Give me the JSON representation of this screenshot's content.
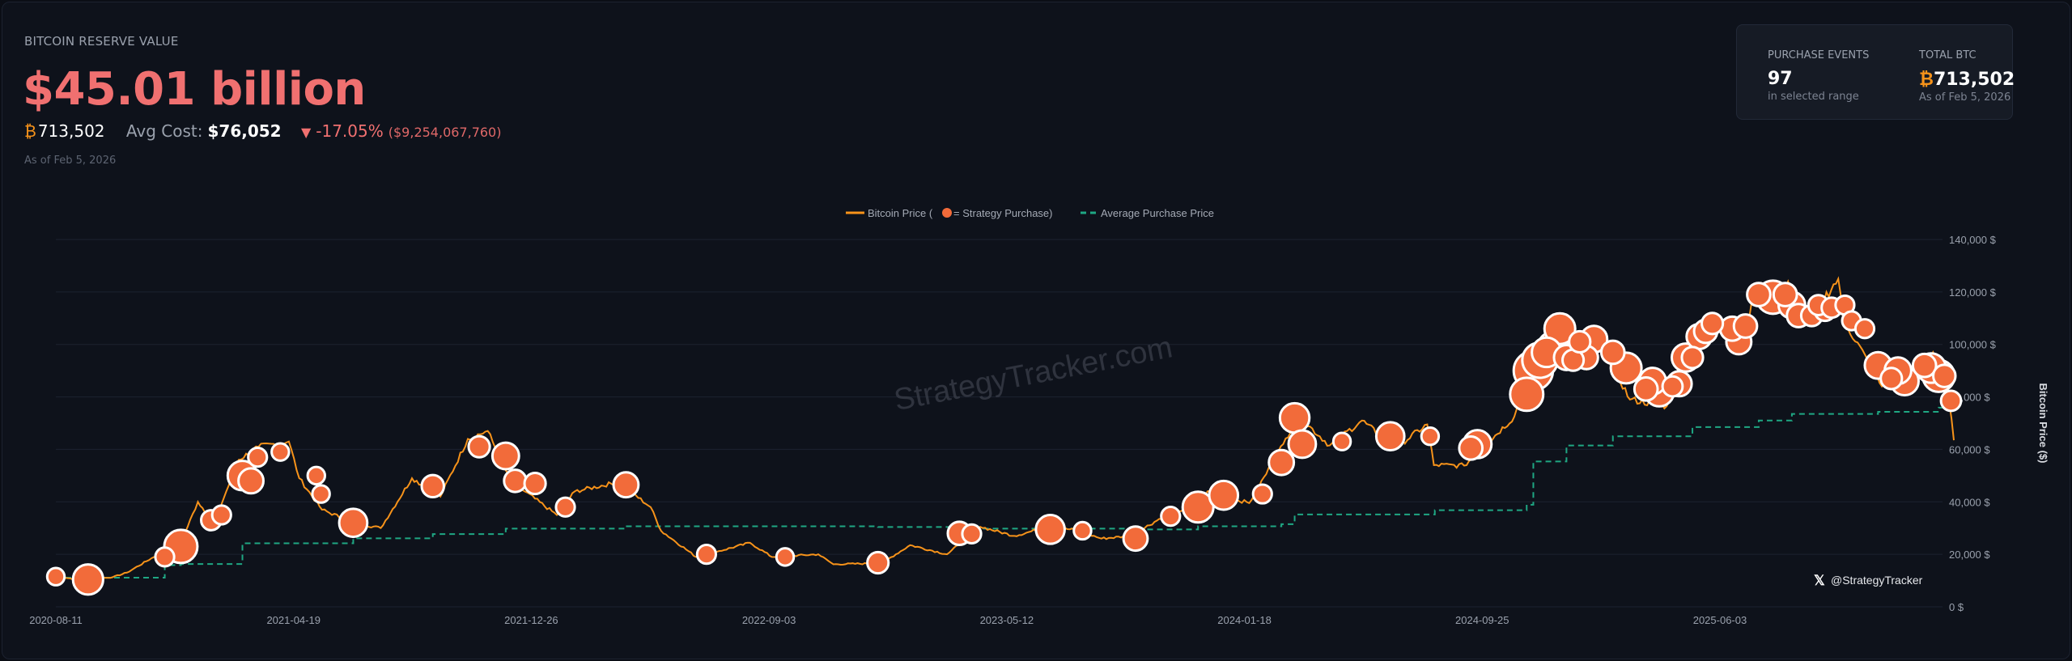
{
  "header": {
    "label": "BITCOIN RESERVE VALUE",
    "value": "$45.01 billion",
    "btc_symbol": "₿",
    "btc_amount": "713,502",
    "avg_cost_label": "Avg Cost:",
    "avg_cost": "$76,052",
    "change_arrow": "▼",
    "change_pct": "-17.05%",
    "change_abs": "($9,254,067,760)",
    "as_of": "As of Feb 5, 2026"
  },
  "stats": {
    "purchase_events_label": "PURCHASE EVENTS",
    "purchase_events": "97",
    "purchase_events_sub": "in selected range",
    "total_btc_label": "TOTAL BTC",
    "total_btc_symbol": "₿",
    "total_btc": "713,502",
    "total_btc_sub": "As of Feb 5, 2026"
  },
  "colors": {
    "price": "#f7931a",
    "purchase": "#f26b3a",
    "average": "#1fa783",
    "negative": "#f07070",
    "background": "#0e121b"
  },
  "watermark": "StrategyTracker.com",
  "credit": {
    "icon": "x-logo-icon",
    "handle": "@StrategyTracker"
  },
  "chart_data": {
    "type": "line",
    "legend": {
      "placement": "top-center",
      "price_label_pre": "Bitcoin Price (",
      "price_label_post": " = Strategy Purchase)",
      "avg_label": "Average Purchase Price"
    },
    "ylabel": "Bitcoin Price ($)",
    "ylim": [
      0,
      140000
    ],
    "yticks": [
      "0 $",
      "20,000 $",
      "40,000 $",
      "60,000 $",
      "80,000 $",
      "100,000 $",
      "120,000 $",
      "140,000 $"
    ],
    "xlim": [
      "2020-08-11",
      "2026-02-05"
    ],
    "xticks": [
      "2020-08-11",
      "2021-04-19",
      "2021-12-26",
      "2022-09-03",
      "2023-05-12",
      "2024-01-18",
      "2024-09-25",
      "2025-06-03"
    ],
    "grid": true,
    "price": [
      [
        "2020-08-11",
        11600
      ],
      [
        "2020-09-05",
        10300
      ],
      [
        "2020-10-10",
        11300
      ],
      [
        "2020-10-25",
        13000
      ],
      [
        "2020-11-20",
        18500
      ],
      [
        "2020-12-20",
        23500
      ],
      [
        "2021-01-08",
        40000
      ],
      [
        "2021-01-25",
        32000
      ],
      [
        "2021-02-20",
        56000
      ],
      [
        "2021-03-13",
        61000
      ],
      [
        "2021-04-14",
        63000
      ],
      [
        "2021-04-25",
        49000
      ],
      [
        "2021-05-19",
        37000
      ],
      [
        "2021-06-22",
        32000
      ],
      [
        "2021-07-20",
        30000
      ],
      [
        "2021-08-22",
        49000
      ],
      [
        "2021-09-21",
        42000
      ],
      [
        "2021-10-20",
        64000
      ],
      [
        "2021-11-10",
        67000
      ],
      [
        "2021-12-04",
        48000
      ],
      [
        "2022-01-22",
        35000
      ],
      [
        "2022-02-10",
        44000
      ],
      [
        "2022-03-28",
        47500
      ],
      [
        "2022-05-01",
        38000
      ],
      [
        "2022-05-12",
        29000
      ],
      [
        "2022-06-18",
        19000
      ],
      [
        "2022-07-10",
        21000
      ],
      [
        "2022-08-14",
        24400
      ],
      [
        "2022-09-06",
        19000
      ],
      [
        "2022-10-25",
        20000
      ],
      [
        "2022-11-10",
        16200
      ],
      [
        "2022-12-31",
        16600
      ],
      [
        "2023-01-30",
        23500
      ],
      [
        "2023-03-10",
        20000
      ],
      [
        "2023-04-14",
        30500
      ],
      [
        "2023-05-20",
        27000
      ],
      [
        "2023-06-25",
        30500
      ],
      [
        "2023-07-25",
        29200
      ],
      [
        "2023-08-20",
        26000
      ],
      [
        "2023-09-20",
        27000
      ],
      [
        "2023-10-25",
        34500
      ],
      [
        "2023-11-30",
        37700
      ],
      [
        "2023-12-10",
        44000
      ],
      [
        "2024-01-23",
        39500
      ],
      [
        "2024-02-28",
        62000
      ],
      [
        "2024-03-14",
        73000
      ],
      [
        "2024-04-17",
        61500
      ],
      [
        "2024-05-21",
        71000
      ],
      [
        "2024-06-25",
        60500
      ],
      [
        "2024-07-29",
        69500
      ],
      [
        "2024-08-05",
        54000
      ],
      [
        "2024-09-06",
        53800
      ],
      [
        "2024-10-29",
        72500
      ],
      [
        "2024-11-22",
        99000
      ],
      [
        "2024-12-17",
        106500
      ],
      [
        "2025-01-13",
        91000
      ],
      [
        "2025-01-21",
        106000
      ],
      [
        "2025-02-28",
        79000
      ],
      [
        "2025-04-08",
        76500
      ],
      [
        "2025-05-22",
        111000
      ],
      [
        "2025-06-22",
        99000
      ],
      [
        "2025-07-14",
        122500
      ],
      [
        "2025-08-02",
        113000
      ],
      [
        "2025-08-14",
        124000
      ],
      [
        "2025-09-01",
        108000
      ],
      [
        "2025-10-06",
        125000
      ],
      [
        "2025-10-11",
        110000
      ],
      [
        "2025-11-21",
        84000
      ],
      [
        "2025-12-10",
        93000
      ],
      [
        "2025-12-31",
        87500
      ],
      [
        "2026-01-14",
        97000
      ],
      [
        "2026-01-25",
        88000
      ],
      [
        "2026-01-31",
        78000
      ],
      [
        "2026-02-05",
        63500
      ]
    ],
    "average_price": [
      [
        "2020-08-11",
        11100
      ],
      [
        "2020-12-04",
        15900
      ],
      [
        "2020-12-21",
        16300
      ],
      [
        "2021-02-24",
        24200
      ],
      [
        "2021-06-21",
        26100
      ],
      [
        "2021-09-13",
        27700
      ],
      [
        "2021-11-29",
        29800
      ],
      [
        "2022-04-05",
        30700
      ],
      [
        "2022-12-27",
        30400
      ],
      [
        "2023-04-05",
        29800
      ],
      [
        "2023-09-25",
        29500
      ],
      [
        "2023-11-30",
        30700
      ],
      [
        "2024-02-26",
        31500
      ],
      [
        "2024-03-11",
        35200
      ],
      [
        "2024-08-06",
        36800
      ],
      [
        "2024-11-11",
        38900
      ],
      [
        "2024-11-18",
        55400
      ],
      [
        "2024-12-23",
        61500
      ],
      [
        "2025-02-10",
        65000
      ],
      [
        "2025-05-05",
        68500
      ],
      [
        "2025-07-14",
        71000
      ],
      [
        "2025-08-18",
        73500
      ],
      [
        "2025-11-17",
        74300
      ],
      [
        "2026-01-20",
        75900
      ],
      [
        "2026-02-05",
        76052
      ]
    ],
    "purchases": [
      [
        "2020-08-11",
        11500,
        3
      ],
      [
        "2020-09-14",
        10400,
        17
      ],
      [
        "2020-12-04",
        19000,
        4
      ],
      [
        "2020-12-21",
        23000,
        22
      ],
      [
        "2021-01-22",
        33000,
        5
      ],
      [
        "2021-02-02",
        35000,
        4
      ],
      [
        "2021-02-24",
        50000,
        16
      ],
      [
        "2021-03-05",
        48000,
        10
      ],
      [
        "2021-03-12",
        57000,
        4
      ],
      [
        "2021-04-05",
        59000,
        3
      ],
      [
        "2021-05-13",
        50000,
        3
      ],
      [
        "2021-05-18",
        43000,
        3
      ],
      [
        "2021-06-21",
        32000,
        14
      ],
      [
        "2021-09-13",
        46000,
        7
      ],
      [
        "2021-11-01",
        61000,
        6
      ],
      [
        "2021-11-29",
        57500,
        12
      ],
      [
        "2021-12-09",
        48000,
        7
      ],
      [
        "2021-12-30",
        47000,
        6
      ],
      [
        "2022-01-31",
        38000,
        4
      ],
      [
        "2022-04-05",
        46500,
        10
      ],
      [
        "2022-06-29",
        20000,
        4
      ],
      [
        "2022-09-20",
        19000,
        3
      ],
      [
        "2022-12-27",
        16800,
        6
      ],
      [
        "2023-03-23",
        28000,
        8
      ],
      [
        "2023-04-05",
        27800,
        4
      ],
      [
        "2023-06-27",
        29500,
        15
      ],
      [
        "2023-07-31",
        29000,
        3
      ],
      [
        "2023-09-25",
        26000,
        9
      ],
      [
        "2023-11-01",
        34500,
        4
      ],
      [
        "2023-11-30",
        38000,
        18
      ],
      [
        "2023-12-27",
        42500,
        15
      ],
      [
        "2024-02-06",
        43000,
        4
      ],
      [
        "2024-02-26",
        55000,
        10
      ],
      [
        "2024-03-11",
        72000,
        16
      ],
      [
        "2024-03-19",
        62000,
        13
      ],
      [
        "2024-04-30",
        63000,
        3
      ],
      [
        "2024-06-20",
        65000,
        14
      ],
      [
        "2024-08-01",
        65000,
        3
      ],
      [
        "2024-09-13",
        60500,
        8
      ],
      [
        "2024-09-20",
        62000,
        14
      ],
      [
        "2024-11-11",
        81000,
        22
      ],
      [
        "2024-11-18",
        90000,
        34
      ],
      [
        "2024-11-25",
        94000,
        26
      ],
      [
        "2024-12-02",
        97000,
        16
      ],
      [
        "2024-12-09",
        99000,
        18
      ],
      [
        "2024-12-16",
        106000,
        18
      ],
      [
        "2024-12-23",
        95000,
        10
      ],
      [
        "2024-12-30",
        94000,
        6
      ],
      [
        "2025-01-06",
        101000,
        6
      ],
      [
        "2025-01-13",
        95000,
        8
      ],
      [
        "2025-01-21",
        102000,
        12
      ],
      [
        "2025-02-10",
        97000,
        8
      ],
      [
        "2025-02-24",
        91000,
        18
      ],
      [
        "2025-03-17",
        83000,
        8
      ],
      [
        "2025-03-24",
        86000,
        12
      ],
      [
        "2025-03-31",
        82000,
        16
      ],
      [
        "2025-04-14",
        84000,
        5
      ],
      [
        "2025-04-21",
        85000,
        10
      ],
      [
        "2025-04-28",
        95000,
        14
      ],
      [
        "2025-05-05",
        95000,
        6
      ],
      [
        "2025-05-12",
        103000,
        10
      ],
      [
        "2025-05-19",
        105000,
        8
      ],
      [
        "2025-05-26",
        108000,
        6
      ],
      [
        "2025-06-16",
        106000,
        9
      ],
      [
        "2025-06-23",
        101000,
        10
      ],
      [
        "2025-06-30",
        107000,
        8
      ],
      [
        "2025-07-14",
        119000,
        8
      ],
      [
        "2025-07-29",
        118000,
        22
      ],
      [
        "2025-08-11",
        119000,
        8
      ],
      [
        "2025-08-18",
        115000,
        12
      ],
      [
        "2025-08-25",
        111000,
        8
      ],
      [
        "2025-09-08",
        111000,
        6
      ],
      [
        "2025-09-15",
        115000,
        5
      ],
      [
        "2025-09-22",
        113000,
        6
      ],
      [
        "2025-09-29",
        114000,
        5
      ],
      [
        "2025-10-13",
        115000,
        4
      ],
      [
        "2025-10-20",
        109000,
        4
      ],
      [
        "2025-11-03",
        106000,
        4
      ],
      [
        "2025-11-17",
        92000,
        12
      ],
      [
        "2025-12-01",
        87000,
        6
      ],
      [
        "2025-12-08",
        90000,
        12
      ],
      [
        "2025-12-15",
        86000,
        14
      ],
      [
        "2026-01-05",
        92000,
        8
      ],
      [
        "2026-01-12",
        91000,
        16
      ],
      [
        "2026-01-20",
        88000,
        20
      ],
      [
        "2026-01-26",
        88000,
        7
      ],
      [
        "2026-02-02",
        78500,
        5
      ]
    ]
  }
}
